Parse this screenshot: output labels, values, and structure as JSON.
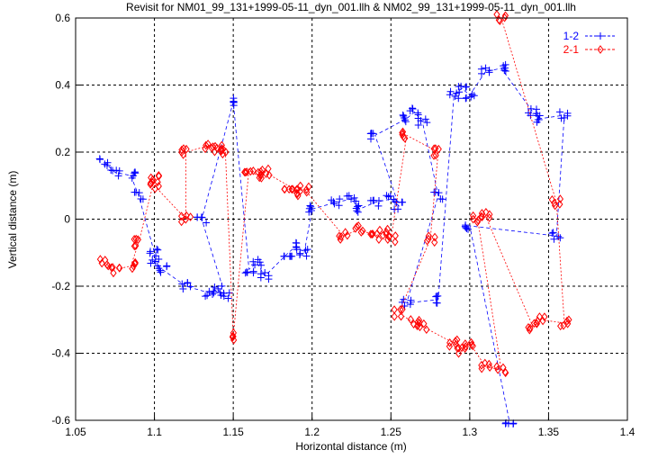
{
  "chart_data": {
    "type": "scatter",
    "title": "Revisit for NM01_99_131+1999-05-11_dyn_001.llh & NM02_99_131+1999-05-11_dyn_001.llh",
    "xlabel": "Horizontal distance (m)",
    "ylabel": "Vertical distance (m)",
    "xlim": [
      1.05,
      1.4
    ],
    "ylim": [
      -0.6,
      0.6
    ],
    "xticks": [
      1.05,
      1.1,
      1.15,
      1.2,
      1.25,
      1.3,
      1.35,
      1.4
    ],
    "xtick_labels": [
      "1.05",
      "1.1",
      "1.15",
      "1.2",
      "1.25",
      "1.3",
      "1.35",
      "1.4"
    ],
    "yticks": [
      -0.6,
      -0.4,
      -0.2,
      0,
      0.2,
      0.4,
      0.6
    ],
    "ytick_labels": [
      "-0.6",
      "-0.4",
      "-0.2",
      "0",
      "0.2",
      "0.4",
      "0.6"
    ],
    "grid": true,
    "legend_position": "top-right",
    "series": [
      {
        "name": "1-2",
        "color": "#0000ff",
        "marker": "plus",
        "points": [
          [
            1.068,
            0.17
          ],
          [
            1.075,
            0.14
          ],
          [
            1.085,
            0.13
          ],
          [
            1.09,
            0.07
          ],
          [
            1.1,
            -0.1
          ],
          [
            1.1,
            -0.13
          ],
          [
            1.105,
            -0.15
          ],
          [
            1.12,
            -0.2
          ],
          [
            1.135,
            -0.22
          ],
          [
            1.14,
            -0.21
          ],
          [
            1.145,
            -0.23
          ],
          [
            1.13,
            0.0
          ],
          [
            1.15,
            0.35
          ],
          [
            1.16,
            -0.15
          ],
          [
            1.165,
            -0.13
          ],
          [
            1.17,
            -0.17
          ],
          [
            1.185,
            -0.1
          ],
          [
            1.19,
            -0.08
          ],
          [
            1.195,
            -0.1
          ],
          [
            1.2,
            0.03
          ],
          [
            1.215,
            0.05
          ],
          [
            1.225,
            0.06
          ],
          [
            1.23,
            0.03
          ],
          [
            1.24,
            0.05
          ],
          [
            1.25,
            0.06
          ],
          [
            1.255,
            0.04
          ],
          [
            1.24,
            0.25
          ],
          [
            1.26,
            0.3
          ],
          [
            1.265,
            0.32
          ],
          [
            1.27,
            0.29
          ],
          [
            1.28,
            0.07
          ],
          [
            1.26,
            -0.25
          ],
          [
            1.28,
            -0.24
          ],
          [
            1.29,
            0.37
          ],
          [
            1.295,
            0.39
          ],
          [
            1.3,
            0.37
          ],
          [
            1.31,
            0.44
          ],
          [
            1.32,
            0.45
          ],
          [
            1.34,
            0.32
          ],
          [
            1.345,
            0.3
          ],
          [
            1.36,
            0.31
          ],
          [
            1.355,
            -0.05
          ],
          [
            1.3,
            -0.02
          ],
          [
            1.325,
            -0.6
          ]
        ]
      },
      {
        "name": "2-1",
        "color": "#ff0000",
        "marker": "diamond",
        "points": [
          [
            1.068,
            -0.13
          ],
          [
            1.075,
            -0.15
          ],
          [
            1.085,
            -0.14
          ],
          [
            1.09,
            -0.07
          ],
          [
            1.1,
            0.12
          ],
          [
            1.1,
            0.1
          ],
          [
            1.12,
            0.0
          ],
          [
            1.12,
            0.2
          ],
          [
            1.135,
            0.22
          ],
          [
            1.14,
            0.21
          ],
          [
            1.145,
            0.2
          ],
          [
            1.15,
            -0.35
          ],
          [
            1.16,
            0.15
          ],
          [
            1.165,
            0.13
          ],
          [
            1.17,
            0.14
          ],
          [
            1.185,
            0.1
          ],
          [
            1.19,
            0.08
          ],
          [
            1.195,
            0.09
          ],
          [
            1.22,
            -0.05
          ],
          [
            1.23,
            -0.03
          ],
          [
            1.24,
            -0.05
          ],
          [
            1.245,
            -0.04
          ],
          [
            1.25,
            -0.06
          ],
          [
            1.26,
            0.25
          ],
          [
            1.28,
            0.2
          ],
          [
            1.275,
            -0.06
          ],
          [
            1.255,
            -0.28
          ],
          [
            1.265,
            -0.31
          ],
          [
            1.27,
            -0.32
          ],
          [
            1.29,
            -0.37
          ],
          [
            1.295,
            -0.39
          ],
          [
            1.3,
            -0.37
          ],
          [
            1.31,
            -0.44
          ],
          [
            1.32,
            -0.45
          ],
          [
            1.305,
            0.0
          ],
          [
            1.31,
            0.01
          ],
          [
            1.34,
            -0.32
          ],
          [
            1.345,
            -0.3
          ],
          [
            1.36,
            -0.31
          ],
          [
            1.355,
            0.05
          ],
          [
            1.32,
            0.6
          ]
        ]
      }
    ]
  }
}
